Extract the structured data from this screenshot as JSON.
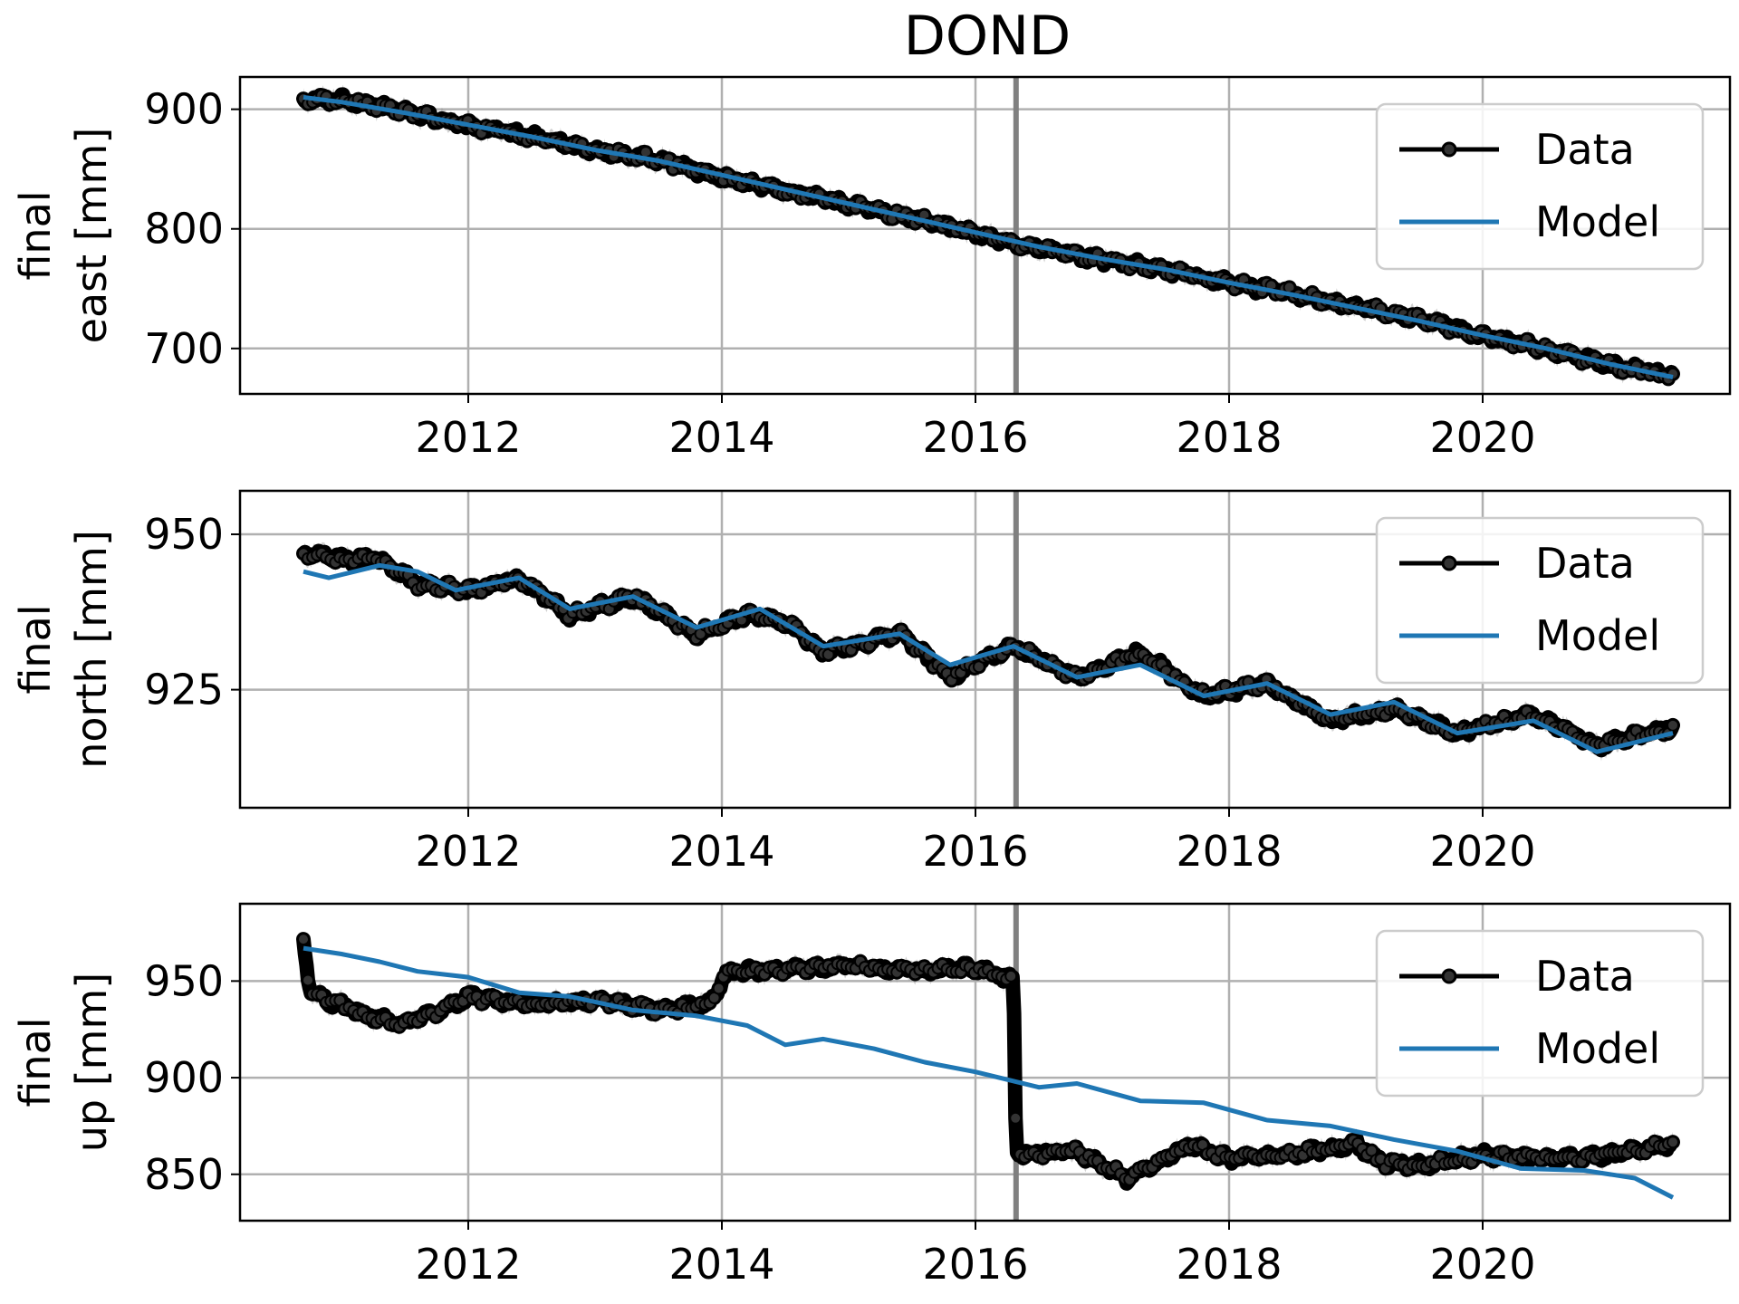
{
  "title": "DOND",
  "colors": {
    "data": "#000000",
    "model": "#1f77b4",
    "grid": "#b0b0b0",
    "event_line": "#808080",
    "errorband": "#9a9a9a"
  },
  "legend": {
    "data_label": "Data",
    "model_label": "Model",
    "placement": "upper right"
  },
  "event_line_year": 2016.32,
  "x_ticks": [
    2012,
    2014,
    2016,
    2018,
    2020
  ],
  "xlim": [
    2010.2,
    2021.95
  ],
  "chart_data": [
    {
      "type": "line",
      "name": "east",
      "ylabel_lines": [
        "final",
        "east [mm]"
      ],
      "ylim": [
        662,
        927
      ],
      "y_ticks": [
        700,
        800,
        900
      ],
      "grid": true,
      "series": [
        {
          "name": "Data",
          "x": [
            2010.7,
            2011.0,
            2011.5,
            2012.0,
            2012.5,
            2013.0,
            2013.5,
            2014.0,
            2014.5,
            2015.0,
            2015.5,
            2016.0,
            2016.5,
            2017.0,
            2017.5,
            2018.0,
            2018.5,
            2019.0,
            2019.5,
            2020.0,
            2020.5,
            2021.0,
            2021.5
          ],
          "y": [
            909,
            908,
            898,
            886,
            877,
            866,
            858,
            843,
            832,
            820,
            809,
            796,
            784,
            774,
            766,
            755,
            746,
            735,
            725,
            710,
            700,
            686,
            677
          ]
        },
        {
          "name": "Model",
          "x": [
            2010.7,
            2011.0,
            2011.5,
            2012.0,
            2012.5,
            2013.0,
            2013.5,
            2014.0,
            2014.5,
            2015.0,
            2015.5,
            2016.0,
            2016.5,
            2017.0,
            2017.5,
            2018.0,
            2018.5,
            2019.0,
            2019.5,
            2020.0,
            2020.5,
            2021.0,
            2021.5
          ],
          "y": [
            910,
            906,
            897,
            887,
            877,
            866,
            857,
            845,
            833,
            821,
            809,
            797,
            785,
            775,
            766,
            755,
            745,
            734,
            723,
            711,
            700,
            687,
            676
          ]
        }
      ]
    },
    {
      "type": "line",
      "name": "north",
      "ylabel_lines": [
        "final",
        "north [mm]"
      ],
      "ylim": [
        906,
        957
      ],
      "y_ticks": [
        925,
        950
      ],
      "grid": true,
      "series": [
        {
          "name": "Data",
          "x": [
            2010.7,
            2011.0,
            2011.3,
            2011.6,
            2012.0,
            2012.4,
            2012.8,
            2013.3,
            2013.8,
            2014.2,
            2014.5,
            2014.8,
            2015.4,
            2015.8,
            2016.3,
            2016.8,
            2017.3,
            2017.8,
            2018.3,
            2018.8,
            2019.3,
            2019.8,
            2020.4,
            2020.9,
            2021.5
          ],
          "y": [
            947,
            946,
            946,
            942,
            941,
            943,
            937,
            940,
            934,
            937,
            936,
            931,
            934,
            927,
            932,
            927,
            931,
            924,
            926,
            920,
            922,
            918,
            921,
            916,
            919
          ]
        },
        {
          "name": "Model",
          "x": [
            2010.7,
            2010.9,
            2011.3,
            2011.6,
            2011.9,
            2012.4,
            2012.8,
            2013.3,
            2013.8,
            2014.3,
            2014.8,
            2015.4,
            2015.8,
            2016.3,
            2016.8,
            2017.3,
            2017.8,
            2018.3,
            2018.8,
            2019.3,
            2019.8,
            2020.4,
            2020.9,
            2021.5
          ],
          "y": [
            944,
            943,
            945,
            944,
            941,
            943,
            938,
            940,
            935,
            938,
            932,
            934,
            929,
            932,
            927,
            929,
            924,
            926,
            921,
            923,
            918,
            920,
            915,
            918
          ]
        }
      ]
    },
    {
      "type": "line",
      "name": "up",
      "ylabel_lines": [
        "final",
        "up [mm]"
      ],
      "ylim": [
        826,
        990
      ],
      "y_ticks": [
        850,
        900,
        950
      ],
      "grid": true,
      "series": [
        {
          "name": "Data",
          "x": [
            2010.7,
            2010.75,
            2010.9,
            2011.2,
            2011.5,
            2011.8,
            2012.0,
            2012.5,
            2013.0,
            2013.5,
            2013.9,
            2014.05,
            2014.5,
            2015.0,
            2015.5,
            2016.0,
            2016.3,
            2016.32,
            2016.8,
            2017.2,
            2017.7,
            2018.0,
            2018.5,
            2019.0,
            2019.2,
            2019.5,
            2020.0,
            2020.5,
            2021.0,
            2021.5
          ],
          "y": [
            972,
            945,
            940,
            932,
            928,
            935,
            942,
            938,
            940,
            935,
            938,
            955,
            956,
            958,
            955,
            957,
            950,
            860,
            862,
            848,
            865,
            858,
            860,
            866,
            856,
            855,
            860,
            858,
            860,
            866
          ]
        },
        {
          "name": "Model",
          "x": [
            2010.7,
            2011.0,
            2011.3,
            2011.6,
            2012.0,
            2012.4,
            2012.8,
            2013.3,
            2013.8,
            2014.2,
            2014.5,
            2014.8,
            2015.2,
            2015.6,
            2016.0,
            2016.5,
            2016.8,
            2017.3,
            2017.8,
            2018.3,
            2018.8,
            2019.3,
            2019.8,
            2020.3,
            2020.8,
            2021.2,
            2021.5
          ],
          "y": [
            967,
            964,
            960,
            955,
            952,
            944,
            942,
            935,
            932,
            927,
            917,
            920,
            915,
            908,
            903,
            895,
            897,
            888,
            887,
            878,
            875,
            868,
            862,
            853,
            852,
            848,
            838
          ]
        }
      ]
    }
  ]
}
